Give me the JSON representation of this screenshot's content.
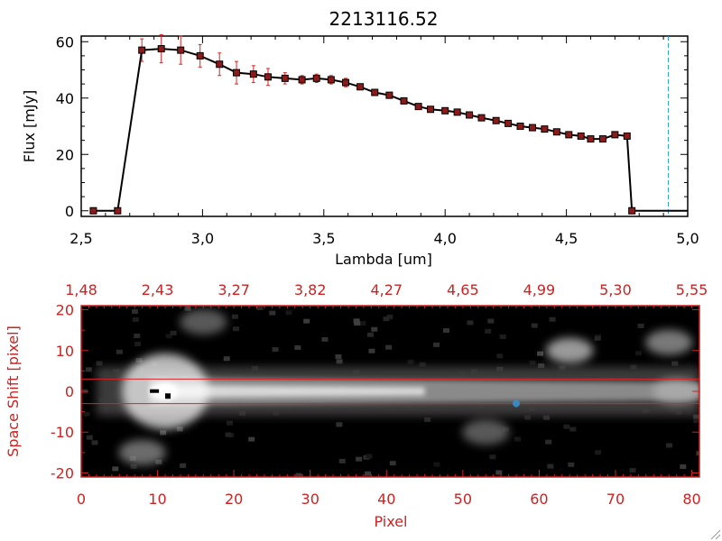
{
  "chart_data": [
    {
      "type": "line",
      "title": "2213116.52",
      "xlabel": "Lambda [um]",
      "ylabel": "Flux [mJy]",
      "xlim": [
        2.5,
        5.0
      ],
      "ylim": [
        -2,
        62
      ],
      "x_ticks": [
        "2.5",
        "3.0",
        "3.5",
        "4.0",
        "4.5",
        "5.0"
      ],
      "y_ticks": [
        "0",
        "20",
        "40",
        "60"
      ],
      "colors": {
        "line": "#000000",
        "marker": "#8b1a1a",
        "errorbar": "#dd2222",
        "vline": "#3399dd",
        "zero_dash": "#dd2222"
      },
      "grid": false,
      "reference_line": {
        "x": 4.92,
        "style": "dashed"
      },
      "series": [
        {
          "x": [
            2.55,
            2.65,
            2.75,
            2.83,
            2.91,
            2.99,
            3.07,
            3.14,
            3.21,
            3.27,
            3.34,
            3.41,
            3.47,
            3.53,
            3.59,
            3.65,
            3.71,
            3.77,
            3.83,
            3.89,
            3.94,
            4.0,
            4.05,
            4.1,
            4.15,
            4.21,
            4.26,
            4.31,
            4.36,
            4.41,
            4.46,
            4.51,
            4.56,
            4.6,
            4.65,
            4.7,
            4.75,
            4.77,
            4.9,
            5.0
          ],
          "y": [
            0,
            0,
            57,
            57.5,
            57,
            55,
            52,
            49,
            48.5,
            47.5,
            47,
            46.5,
            47,
            46.5,
            45.5,
            44,
            42,
            41,
            39,
            37,
            36,
            35.5,
            35,
            34,
            33,
            32,
            31,
            30,
            29.5,
            29,
            28,
            27,
            26.5,
            25.5,
            25.5,
            27,
            26.5,
            0,
            0,
            0
          ],
          "yerr": [
            0,
            0,
            4,
            5,
            5,
            4,
            4,
            4,
            3,
            3,
            2,
            1.5,
            1.5,
            1.5,
            1.5,
            1,
            1,
            1,
            1,
            1,
            1,
            1,
            1,
            1,
            1,
            1,
            1,
            1,
            1,
            1,
            1,
            1,
            1,
            1,
            1,
            1,
            1,
            0,
            0,
            0
          ]
        }
      ]
    },
    {
      "type": "heatmap",
      "xlabel": "Pixel",
      "ylabel": "Space Shift [pixel]",
      "xlim": [
        0,
        81
      ],
      "ylim": [
        -21,
        21
      ],
      "x_ticks": [
        "0",
        "10",
        "20",
        "30",
        "40",
        "50",
        "60",
        "70",
        "80"
      ],
      "y_ticks": [
        "-20",
        "-10",
        "0",
        "10",
        "20"
      ],
      "top_ticks": [
        "1.48",
        "2.43",
        "3.27",
        "3.82",
        "4.27",
        "4.65",
        "4.99",
        "5.30",
        "5.55"
      ],
      "colors": {
        "frame": "#cc2222",
        "guide": "#dd2222",
        "marker": "#3399dd",
        "background": "#000000"
      },
      "guide_lines_y": [
        3,
        -3
      ],
      "marker": {
        "pixel": 57,
        "shift": -3
      },
      "trace_center_shift": 0,
      "blobs": [
        {
          "pixel": 11,
          "shift": 0,
          "brightness": 1.0
        },
        {
          "pixel": 8,
          "shift": -15,
          "brightness": 0.45
        },
        {
          "pixel": 64,
          "shift": 10,
          "brightness": 0.8
        },
        {
          "pixel": 78,
          "shift": 0,
          "brightness": 0.6
        },
        {
          "pixel": 53,
          "shift": -10,
          "brightness": 0.3
        },
        {
          "pixel": 16,
          "shift": 17,
          "brightness": 0.3
        },
        {
          "pixel": 77,
          "shift": 12,
          "brightness": 0.55
        }
      ]
    }
  ]
}
